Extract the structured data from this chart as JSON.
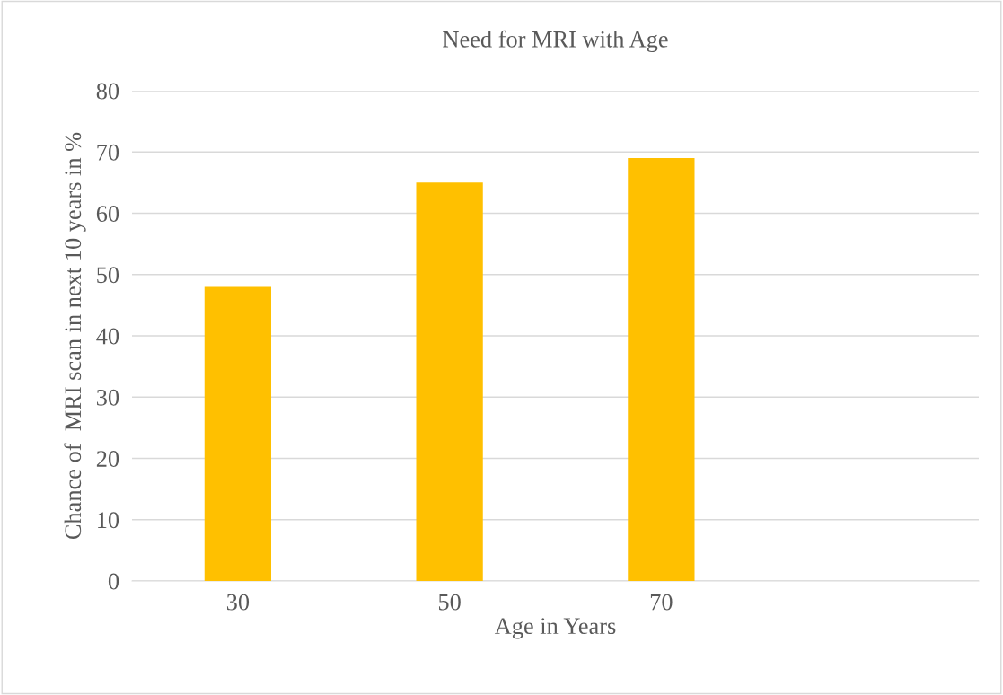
{
  "chart_data": {
    "type": "bar",
    "title": "Need for MRI with Age",
    "xlabel": "Age in Years",
    "ylabel": "Chance of  MRI scan in next 10 years in %",
    "categories": [
      "30",
      "50",
      "70",
      null
    ],
    "values": [
      48,
      65,
      69,
      null
    ],
    "color": "#ffc000",
    "ylim": [
      0,
      80
    ],
    "yticks": [
      0,
      10,
      20,
      30,
      40,
      50,
      60,
      70,
      80
    ],
    "grid": "y",
    "legend": false
  }
}
